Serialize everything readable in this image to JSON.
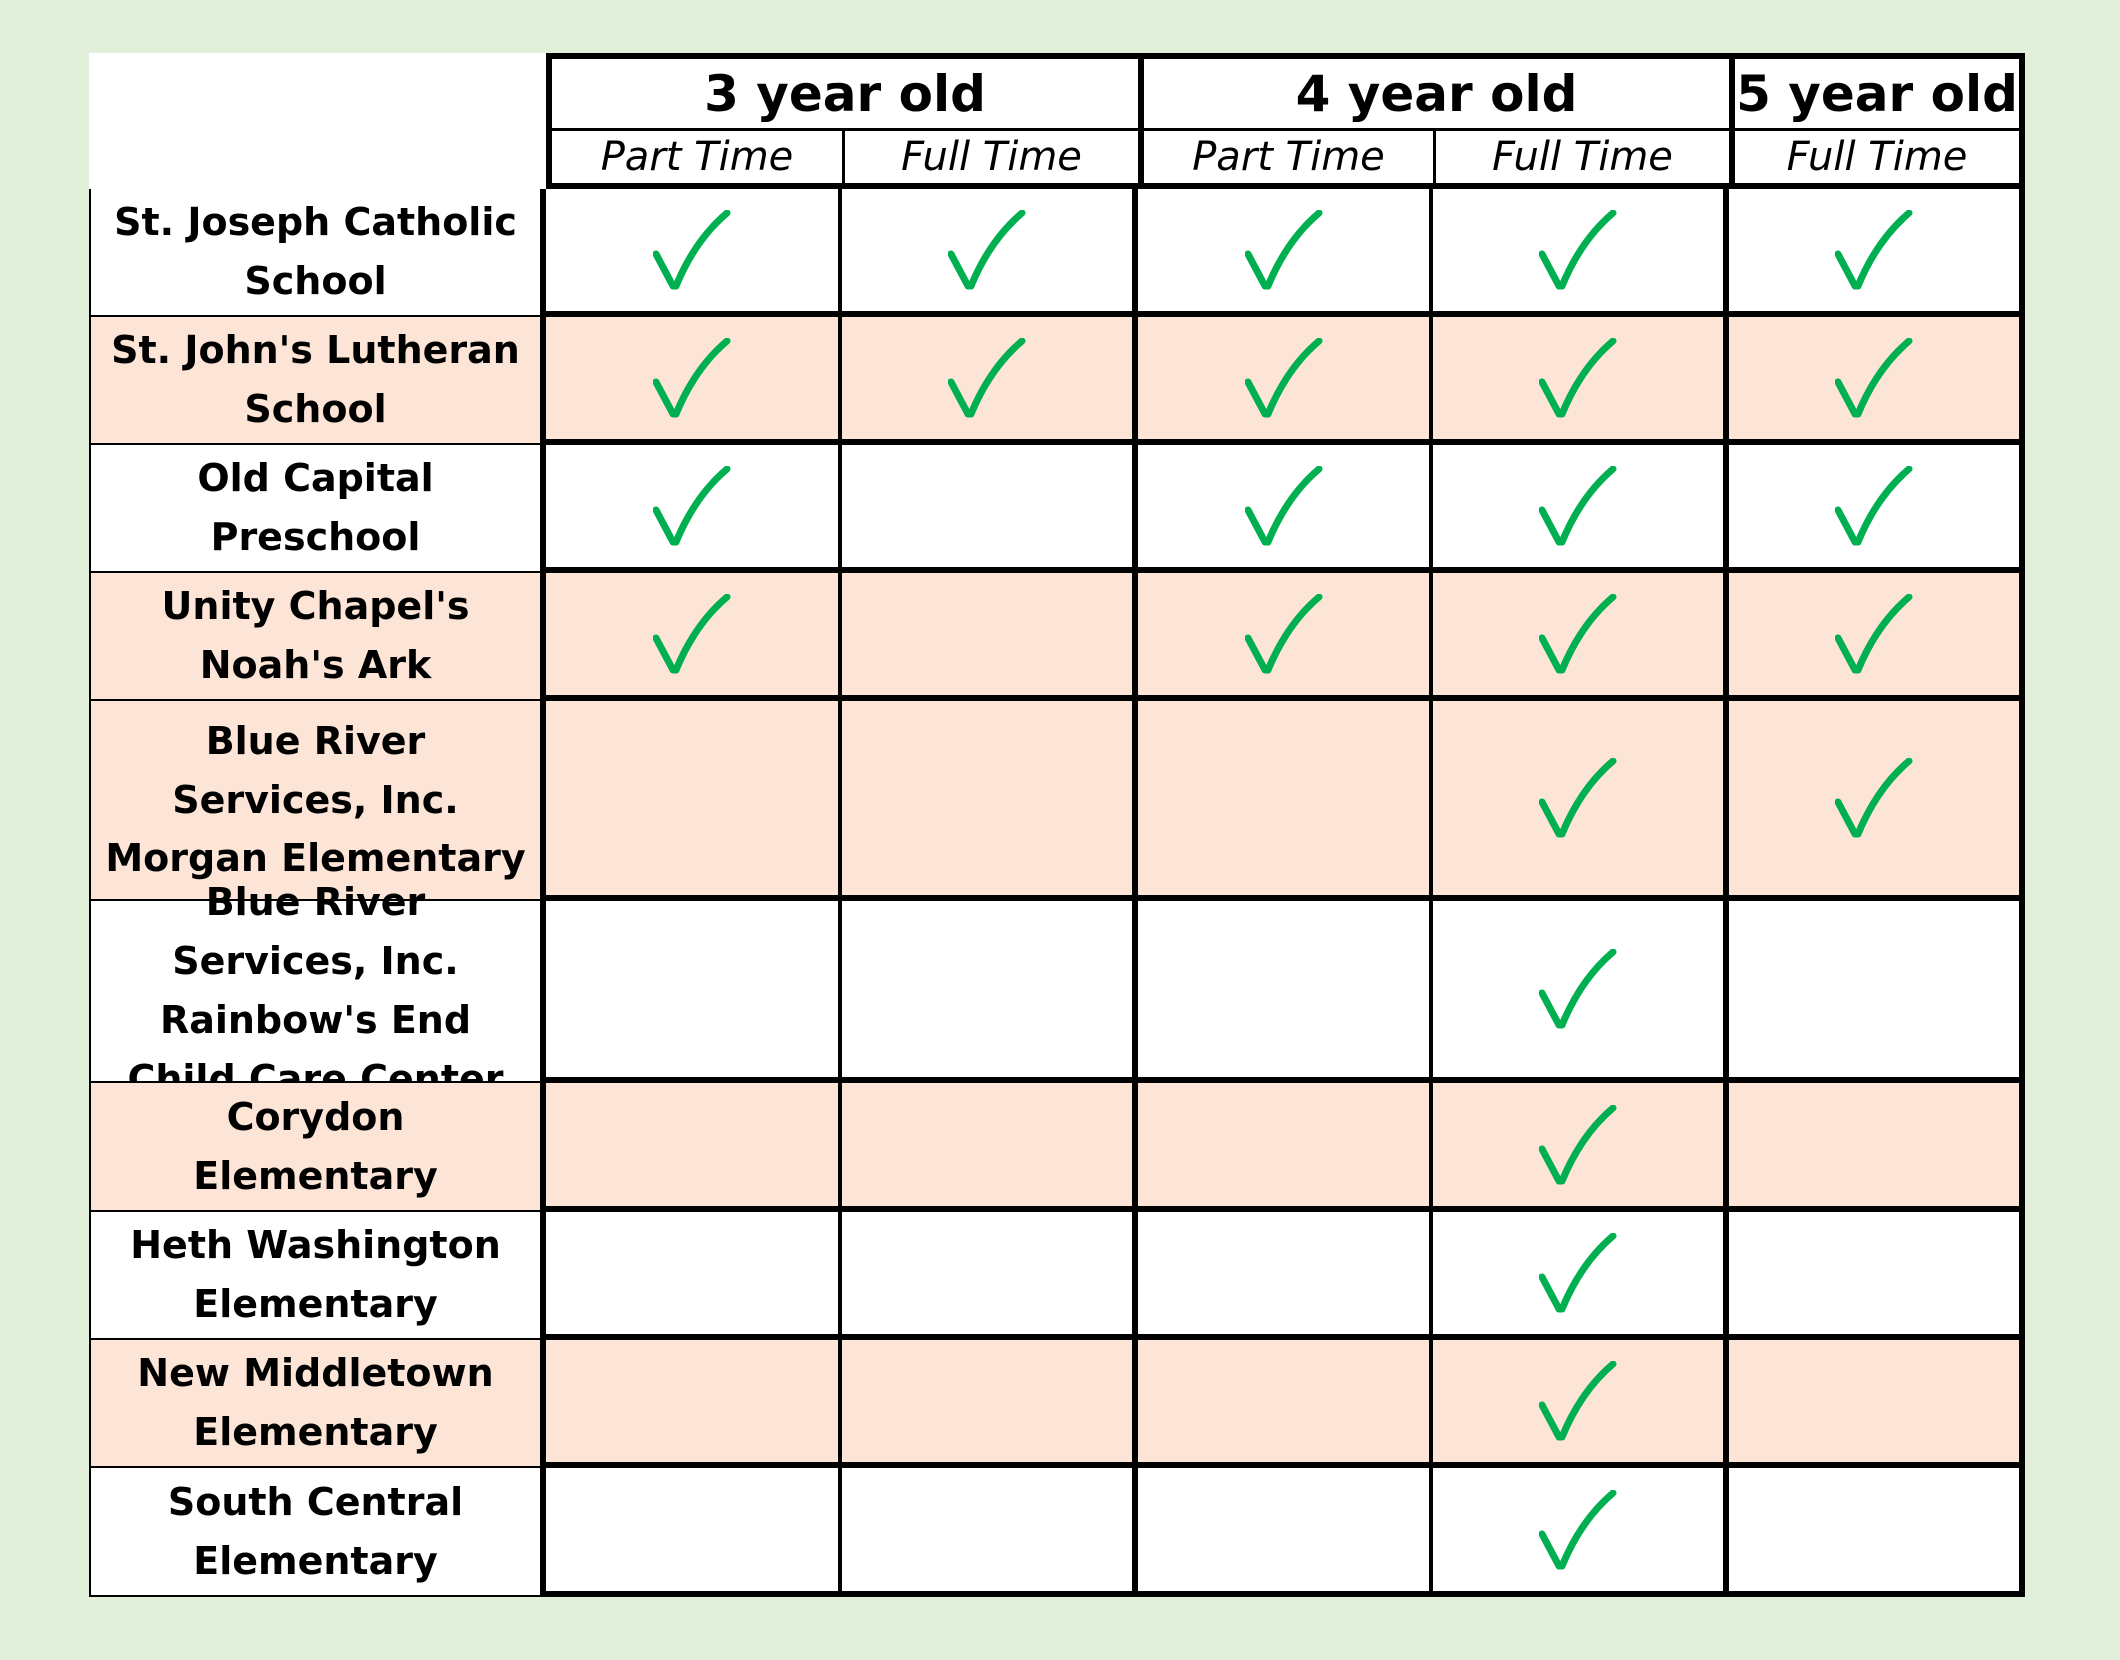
{
  "columns": {
    "groups": [
      {
        "label": "3 year old",
        "span": 2
      },
      {
        "label": "4 year old",
        "span": 2
      },
      {
        "label": "5 year old",
        "span": 1
      }
    ],
    "subcolumns": [
      "Part Time",
      "Full Time",
      "Part Time",
      "Full Time",
      "Full Time"
    ]
  },
  "colors": {
    "background": "#e2efda",
    "row_shaded": "#fce4d6",
    "row_plain": "#ffffff",
    "check": "#00b050",
    "border": "#000000"
  },
  "rows": [
    {
      "name": "St. Joseph Catholic School",
      "shaded": false,
      "checks": [
        true,
        true,
        true,
        true,
        true
      ]
    },
    {
      "name": "St. John's Lutheran School",
      "shaded": true,
      "checks": [
        true,
        true,
        true,
        true,
        true
      ]
    },
    {
      "name": "Old Capital Preschool",
      "shaded": false,
      "checks": [
        true,
        false,
        true,
        true,
        true
      ]
    },
    {
      "name": "Unity Chapel's Noah's Ark",
      "shaded": true,
      "checks": [
        true,
        false,
        true,
        true,
        true
      ]
    },
    {
      "name": "Blue River Services, Inc. Morgan Elementary",
      "shaded": true,
      "checks": [
        false,
        false,
        false,
        true,
        true
      ]
    },
    {
      "name": "Blue River Services, Inc. Rainbow's End Child Care Center",
      "shaded": false,
      "checks": [
        false,
        false,
        false,
        true,
        false
      ]
    },
    {
      "name": "Corydon Elementary",
      "shaded": true,
      "checks": [
        false,
        false,
        false,
        true,
        false
      ]
    },
    {
      "name": "Heth Washington Elementary",
      "shaded": false,
      "checks": [
        false,
        false,
        false,
        true,
        false
      ]
    },
    {
      "name": "New Middletown Elementary",
      "shaded": true,
      "checks": [
        false,
        false,
        false,
        true,
        false
      ]
    },
    {
      "name": "South Central Elementary",
      "shaded": false,
      "checks": [
        false,
        false,
        false,
        true,
        false
      ]
    }
  ]
}
